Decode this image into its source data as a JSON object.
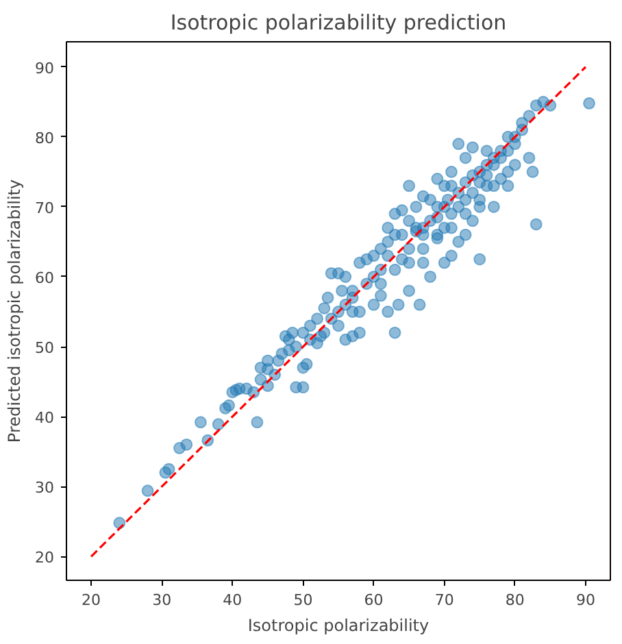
{
  "chart_data": {
    "type": "scatter",
    "title": "Isotropic polarizability prediction",
    "xlabel": "Isotropic polarizability",
    "ylabel": "Predicted isotropic polarizability",
    "xlim": [
      16.5,
      93.5
    ],
    "ylim": [
      16.6,
      93.6
    ],
    "xticks": [
      20,
      30,
      40,
      50,
      60,
      70,
      80,
      90
    ],
    "yticks": [
      20,
      30,
      40,
      50,
      60,
      70,
      80,
      90
    ],
    "grid": false,
    "marker": "circle",
    "series": [
      {
        "color": "#1f77b4",
        "x": [
          24,
          28,
          30.5,
          31,
          32.5,
          33.5,
          35.5,
          36.5,
          38,
          39,
          39.5,
          40,
          40.5,
          41,
          42,
          43,
          43.5,
          44,
          45,
          45,
          46,
          46.5,
          47,
          47.5,
          48,
          48.5,
          49,
          50,
          50,
          50.5,
          51,
          52,
          52.5,
          53,
          53.5,
          54,
          55,
          55.5,
          56,
          57,
          58,
          58,
          59,
          60,
          60,
          61,
          61,
          62,
          62,
          63,
          63.5,
          64,
          65,
          65,
          66,
          66.5,
          67,
          67,
          68,
          68,
          69,
          69,
          70,
          70,
          70.5,
          71,
          71,
          72,
          72,
          73,
          73,
          74,
          74,
          75,
          75,
          75,
          76,
          76,
          76,
          77,
          77,
          78,
          78,
          79,
          79,
          80,
          80,
          81,
          81,
          82,
          82,
          82.5,
          83,
          83,
          84,
          85,
          90.5,
          65,
          67,
          69,
          62,
          64,
          66,
          71,
          73,
          72,
          63,
          58,
          56,
          57,
          59,
          61,
          60,
          62,
          64,
          65,
          66,
          67,
          68,
          69,
          70,
          71,
          72,
          73,
          74,
          75,
          76,
          77,
          78,
          79,
          80,
          50,
          51,
          52,
          53,
          54,
          55,
          56,
          57,
          45,
          44,
          48,
          49,
          55,
          57,
          61,
          63,
          65,
          67,
          69,
          71,
          73,
          75,
          77,
          79,
          63,
          70,
          74
        ],
        "values": [
          24.8,
          29.4,
          32,
          32.5,
          35.5,
          36,
          39.2,
          36.6,
          38.9,
          41.2,
          41.6,
          43.5,
          43.8,
          44,
          44,
          43.5,
          39.2,
          45.3,
          44.4,
          46.8,
          46,
          48,
          49,
          51.5,
          51,
          52,
          44.2,
          44.2,
          47,
          47.5,
          53,
          54,
          51.5,
          55.5,
          57,
          60.5,
          60.5,
          58,
          51,
          51.5,
          52,
          55,
          59,
          60,
          56,
          61,
          57.3,
          63,
          55,
          52,
          56,
          62.5,
          64,
          58,
          66.5,
          56,
          67,
          62,
          68,
          60,
          70,
          66,
          67,
          62,
          71,
          73,
          63,
          70,
          65,
          73.5,
          66,
          74.5,
          68,
          75,
          62.5,
          70,
          76,
          78,
          73,
          77,
          70,
          78,
          74,
          80,
          73,
          80,
          76,
          81,
          82,
          83,
          77,
          75,
          84.5,
          67.5,
          85,
          84.5,
          84.8,
          73,
          71.5,
          74,
          67,
          69.5,
          70,
          75,
          77,
          79,
          66,
          62,
          60,
          58,
          62.5,
          64,
          63,
          65,
          66,
          68,
          67,
          66,
          71,
          68.5,
          70,
          69,
          72,
          71,
          72,
          73.5,
          74.5,
          76,
          77,
          78,
          79,
          52,
          51,
          50.5,
          52,
          54,
          55,
          56,
          57,
          48,
          47,
          49.5,
          50,
          53,
          55,
          59,
          61,
          62,
          64,
          65.5,
          67,
          69,
          71,
          73,
          75,
          69,
          73,
          78.5
        ]
      },
      {
        "type": "line",
        "color": "#ff0000",
        "line_style": "dashed",
        "marker": "none",
        "x": [
          20,
          90
        ],
        "values": [
          20,
          90
        ]
      }
    ]
  }
}
